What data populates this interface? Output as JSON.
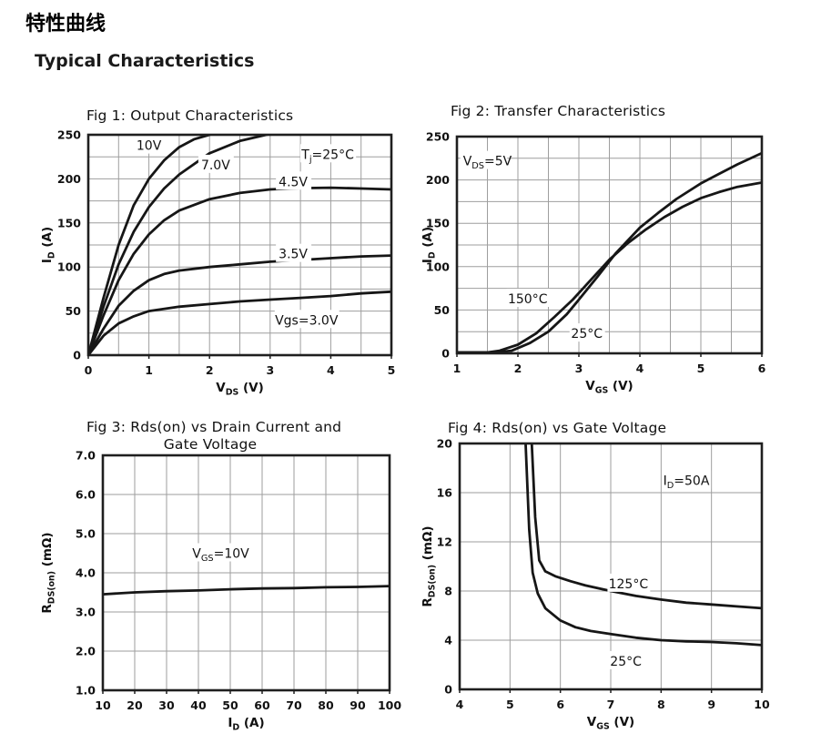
{
  "page": {
    "title_cn": "特性曲线",
    "title_en": "Typical Characteristics"
  },
  "chart_data": [
    {
      "type": "line",
      "title": "Fig 1: Output Characteristics",
      "xlabel": "V_{DS} (V)",
      "ylabel": "I_{D} (A)",
      "xlim": [
        0,
        5
      ],
      "ylim": [
        0,
        250
      ],
      "xticks": [
        0,
        1,
        2,
        3,
        4,
        5
      ],
      "yticks": [
        0,
        50,
        100,
        150,
        200,
        250
      ],
      "x_grid_step": 0.5,
      "y_grid_step": 25,
      "grid": true,
      "annotations": [
        {
          "text": "10V",
          "x": 1.0,
          "y": 238
        },
        {
          "text": "7.0V",
          "x": 2.1,
          "y": 216
        },
        {
          "text": "T_{j}=25°C",
          "x": 3.95,
          "y": 228
        },
        {
          "text": "4.5V",
          "x": 3.38,
          "y": 197
        },
        {
          "text": "3.5V",
          "x": 3.38,
          "y": 115
        },
        {
          "text": "Vgs=3.0V",
          "x": 3.6,
          "y": 40
        }
      ],
      "series": [
        {
          "name": "Vgs=10V",
          "points": [
            [
              0,
              0
            ],
            [
              0.25,
              65
            ],
            [
              0.5,
              125
            ],
            [
              0.75,
              170
            ],
            [
              1,
              200
            ],
            [
              1.25,
              221
            ],
            [
              1.5,
              236
            ],
            [
              1.75,
              245
            ],
            [
              2,
              250
            ],
            [
              2.3,
              256
            ]
          ]
        },
        {
          "name": "Vgs=7.0V",
          "points": [
            [
              0,
              0
            ],
            [
              0.25,
              55
            ],
            [
              0.5,
              103
            ],
            [
              0.75,
              140
            ],
            [
              1,
              168
            ],
            [
              1.25,
              189
            ],
            [
              1.5,
              205
            ],
            [
              2,
              229
            ],
            [
              2.5,
              243
            ],
            [
              3,
              251
            ],
            [
              3.3,
              256
            ]
          ]
        },
        {
          "name": "Vgs=4.5V",
          "points": [
            [
              0,
              0
            ],
            [
              0.25,
              45
            ],
            [
              0.5,
              85
            ],
            [
              0.75,
              115
            ],
            [
              1,
              137
            ],
            [
              1.25,
              153
            ],
            [
              1.5,
              164
            ],
            [
              2,
              177
            ],
            [
              2.5,
              184
            ],
            [
              3,
              188
            ],
            [
              3.5,
              189.5
            ],
            [
              4,
              190
            ],
            [
              4.5,
              189
            ],
            [
              5,
              188
            ]
          ]
        },
        {
          "name": "Vgs=3.5V",
          "points": [
            [
              0,
              0
            ],
            [
              0.25,
              30
            ],
            [
              0.5,
              56
            ],
            [
              0.75,
              73
            ],
            [
              1,
              85
            ],
            [
              1.25,
              92
            ],
            [
              1.5,
              96
            ],
            [
              2,
              100
            ],
            [
              2.5,
              103
            ],
            [
              3,
              106
            ],
            [
              3.5,
              108
            ],
            [
              4,
              110
            ],
            [
              4.5,
              112
            ],
            [
              5,
              113
            ]
          ]
        },
        {
          "name": "Vgs=3.0V",
          "points": [
            [
              0,
              0
            ],
            [
              0.25,
              22
            ],
            [
              0.5,
              36
            ],
            [
              0.75,
              44
            ],
            [
              1,
              50
            ],
            [
              1.5,
              55
            ],
            [
              2,
              58
            ],
            [
              2.5,
              61
            ],
            [
              3,
              63
            ],
            [
              3.5,
              65
            ],
            [
              4,
              67
            ],
            [
              4.5,
              70
            ],
            [
              5,
              72
            ]
          ]
        }
      ]
    },
    {
      "type": "line",
      "title": "Fig 2: Transfer Characteristics",
      "xlabel": "V_{GS} (V)",
      "ylabel": "I_{D} (A)",
      "xlim": [
        1,
        6
      ],
      "ylim": [
        0,
        250
      ],
      "xticks": [
        1,
        2,
        3,
        4,
        5,
        6
      ],
      "yticks": [
        0,
        50,
        100,
        150,
        200,
        250
      ],
      "x_grid_step": 0.5,
      "y_grid_step": 25,
      "grid": true,
      "annotations": [
        {
          "text": "V_{DS}=5V",
          "x": 1.1,
          "y": 222,
          "anchor": "start"
        },
        {
          "text": "150°C",
          "x": 2.16,
          "y": 63
        },
        {
          "text": "25°C",
          "x": 3.13,
          "y": 23
        }
      ],
      "series": [
        {
          "name": "150°C",
          "points": [
            [
              1,
              1
            ],
            [
              1.5,
              1
            ],
            [
              1.7,
              3
            ],
            [
              2,
              10
            ],
            [
              2.3,
              23
            ],
            [
              2.6,
              42
            ],
            [
              2.9,
              62
            ],
            [
              3.2,
              85
            ],
            [
              3.5,
              108
            ],
            [
              3.8,
              127
            ],
            [
              4.1,
              143
            ],
            [
              4.4,
              157
            ],
            [
              4.7,
              169
            ],
            [
              5,
              179
            ],
            [
              5.3,
              186
            ],
            [
              5.6,
              192
            ],
            [
              6,
              197
            ]
          ]
        },
        {
          "name": "25°C",
          "points": [
            [
              1,
              1
            ],
            [
              1.6,
              1
            ],
            [
              1.9,
              3
            ],
            [
              2.2,
              12
            ],
            [
              2.5,
              25
            ],
            [
              2.8,
              45
            ],
            [
              3,
              62
            ],
            [
              3.3,
              88
            ],
            [
              3.6,
              115
            ],
            [
              4,
              145
            ],
            [
              4.3,
              162
            ],
            [
              4.6,
              178
            ],
            [
              5,
              196
            ],
            [
              5.3,
              207
            ],
            [
              5.6,
              218
            ],
            [
              6,
              231
            ]
          ]
        }
      ]
    },
    {
      "type": "line",
      "title": "Fig 3: Rds(on) vs Drain Current and",
      "title_line2": "Gate Voltage",
      "xlabel": "I_{D} (A)",
      "ylabel": "R_{DS(on)} (mΩ)",
      "xlim": [
        10,
        100
      ],
      "ylim": [
        1,
        7
      ],
      "xticks": [
        10,
        20,
        30,
        40,
        50,
        60,
        70,
        80,
        90,
        100
      ],
      "yticks": [
        1,
        2,
        3,
        4,
        5,
        6,
        7
      ],
      "ytick_labels": [
        "1.0",
        "2.0",
        "3.0",
        "4.0",
        "5.0",
        "6.0",
        "7.0"
      ],
      "x_grid_step": 10,
      "y_grid_step": 1,
      "grid": true,
      "annotations": [
        {
          "text": "V_{GS}=10V",
          "x": 47,
          "y": 4.5
        }
      ],
      "series": [
        {
          "name": "VGS=10V",
          "points": [
            [
              10,
              3.45
            ],
            [
              20,
              3.5
            ],
            [
              30,
              3.53
            ],
            [
              40,
              3.55
            ],
            [
              50,
              3.58
            ],
            [
              60,
              3.6
            ],
            [
              70,
              3.61
            ],
            [
              80,
              3.63
            ],
            [
              90,
              3.64
            ],
            [
              100,
              3.66
            ]
          ]
        }
      ]
    },
    {
      "type": "line",
      "title": "Fig 4: Rds(on) vs Gate Voltage",
      "xlabel": "V_{GS} (V)",
      "ylabel": "R_{DS(on)} (mΩ)",
      "xlim": [
        4,
        10
      ],
      "ylim": [
        0,
        20
      ],
      "xticks": [
        4,
        5,
        6,
        7,
        8,
        9,
        10
      ],
      "yticks": [
        0,
        4,
        8,
        12,
        16,
        20
      ],
      "x_grid_step": 1,
      "y_grid_step": 4,
      "grid": true,
      "annotations": [
        {
          "text": "I_{D}=50A",
          "x": 8.5,
          "y": 17
        },
        {
          "text": "125°C",
          "x": 7.35,
          "y": 8.6
        },
        {
          "text": "25°C",
          "x": 7.3,
          "y": 2.3
        }
      ],
      "series": [
        {
          "name": "125°C",
          "points": [
            [
              5.42,
              21
            ],
            [
              5.5,
              14
            ],
            [
              5.58,
              10.5
            ],
            [
              5.7,
              9.6
            ],
            [
              5.9,
              9.2
            ],
            [
              6.2,
              8.8
            ],
            [
              6.5,
              8.45
            ],
            [
              7,
              8.0
            ],
            [
              7.5,
              7.6
            ],
            [
              8,
              7.3
            ],
            [
              8.5,
              7.05
            ],
            [
              9,
              6.9
            ],
            [
              9.5,
              6.75
            ],
            [
              10,
              6.6
            ]
          ]
        },
        {
          "name": "25°C",
          "points": [
            [
              5.3,
              21
            ],
            [
              5.38,
              13
            ],
            [
              5.45,
              9.5
            ],
            [
              5.55,
              7.8
            ],
            [
              5.7,
              6.6
            ],
            [
              6,
              5.6
            ],
            [
              6.3,
              5.05
            ],
            [
              6.6,
              4.75
            ],
            [
              7,
              4.5
            ],
            [
              7.5,
              4.2
            ],
            [
              8,
              4.0
            ],
            [
              8.5,
              3.9
            ],
            [
              9,
              3.85
            ],
            [
              9.5,
              3.75
            ],
            [
              10,
              3.6
            ]
          ]
        }
      ]
    }
  ]
}
